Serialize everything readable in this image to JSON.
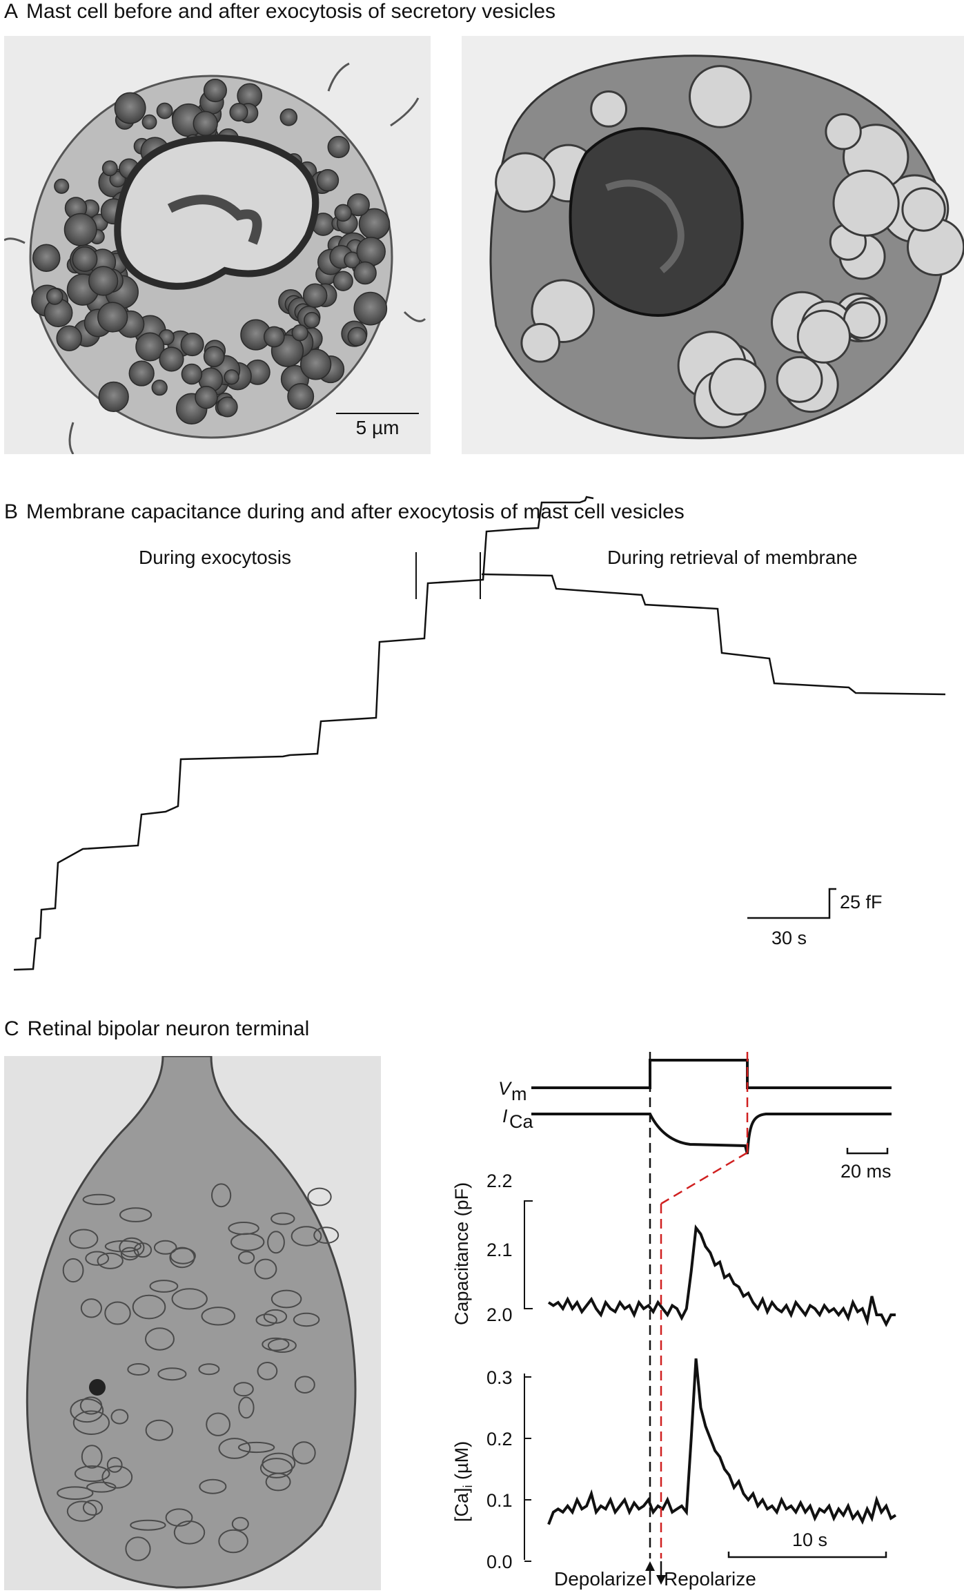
{
  "panel_a": {
    "letter": "A",
    "title": "Mast cell before and after exocytosis of secretory vesicles",
    "scale_bar": "5 µm"
  },
  "panel_b": {
    "letter": "B",
    "title": "Membrane capacitance during and after exocytosis of mast cell vesicles",
    "left_label": "During exocytosis",
    "right_label": "During retrieval of membrane",
    "scale_y": "25 fF",
    "scale_x": "30 s"
  },
  "panel_c": {
    "letter": "C",
    "title": "Retinal bipolar neuron terminal",
    "vm_label": "V",
    "vm_sub": "m",
    "ica_label": "I",
    "ica_sub": "Ca",
    "scale_ms": "20 ms",
    "scale_s": "10 s",
    "depolarize": "Depolarize",
    "repolarize": "Repolarize",
    "cap_ylabel": "Capacitance (pF)",
    "ca_ylabel_main": "[Ca]",
    "ca_ylabel_sub": "i",
    "ca_ylabel_unit": " (µM)"
  },
  "chart_data": [
    {
      "type": "line",
      "title": "Capacitance (pF)",
      "ylabel": "Capacitance (pF)",
      "yticks": [
        "2.0",
        "2.1",
        "2.2"
      ],
      "ylim": [
        1.95,
        2.2
      ],
      "x_scale": "10 s",
      "series": [
        {
          "values": [
            2.01,
            2.005,
            2.01,
            2.0,
            2.015,
            2.0,
            2.01,
            1.995,
            2.005,
            2.015,
            2.0,
            1.99,
            2.01,
            2.0,
            1.995,
            2.01,
            2.0,
            2.005,
            1.99,
            2.01,
            2.0,
            2.005,
            1.995,
            2.01,
            2.0,
            1.99,
            2.005,
            2.0,
            1.985,
            2.0,
            2.06,
            2.13,
            2.12,
            2.1,
            2.09,
            2.07,
            2.075,
            2.05,
            2.055,
            2.04,
            2.035,
            2.02,
            2.025,
            2.01,
            2.0,
            2.015,
            1.995,
            2.01,
            2.0,
            1.995,
            2.005,
            1.99,
            2.01,
            2.0,
            1.99,
            2.005,
            2.0,
            1.99,
            2.005,
            1.995,
            2.0,
            1.99,
            2.0,
            1.985,
            2.01,
            1.995,
            2.0,
            1.98,
            2.02,
            1.99,
            1.99,
            1.975,
            1.99,
            1.99
          ]
        }
      ]
    },
    {
      "type": "line",
      "title": "[Ca]i (µM)",
      "ylabel": "[Ca]i (µM)",
      "yticks": [
        "0.0",
        "0.1",
        "0.2",
        "0.3"
      ],
      "ylim": [
        0.0,
        0.3
      ],
      "x_scale": "10 s",
      "series": [
        {
          "values": [
            0.06,
            0.08,
            0.085,
            0.08,
            0.09,
            0.08,
            0.1,
            0.085,
            0.09,
            0.11,
            0.08,
            0.09,
            0.085,
            0.1,
            0.08,
            0.09,
            0.1,
            0.08,
            0.095,
            0.085,
            0.09,
            0.1,
            0.08,
            0.09,
            0.085,
            0.1,
            0.08,
            0.085,
            0.09,
            0.08,
            0.2,
            0.33,
            0.25,
            0.22,
            0.2,
            0.18,
            0.17,
            0.15,
            0.14,
            0.12,
            0.13,
            0.11,
            0.1,
            0.11,
            0.09,
            0.1,
            0.085,
            0.09,
            0.08,
            0.1,
            0.085,
            0.09,
            0.08,
            0.095,
            0.08,
            0.09,
            0.07,
            0.085,
            0.08,
            0.09,
            0.07,
            0.085,
            0.075,
            0.09,
            0.07,
            0.08,
            0.065,
            0.085,
            0.07,
            0.1,
            0.08,
            0.09,
            0.07,
            0.075
          ]
        }
      ]
    }
  ]
}
